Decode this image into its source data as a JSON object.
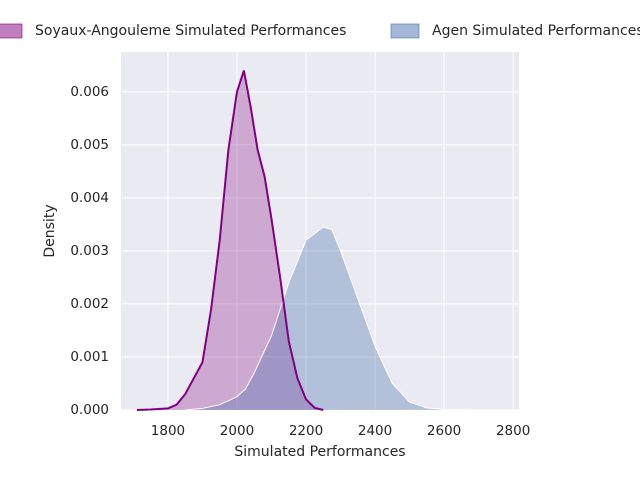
{
  "chart_data": {
    "type": "kde",
    "xlabel": "Simulated Performances",
    "ylabel": "Density",
    "xlim": [
      1664,
      2817
    ],
    "xticks": [
      1800,
      2000,
      2200,
      2400,
      2600,
      2800
    ],
    "ylim": [
      0,
      0.00675
    ],
    "yticks": [
      {
        "value": 0,
        "label": "0.000"
      },
      {
        "value": 0.001,
        "label": "0.001"
      },
      {
        "value": 0.002,
        "label": "0.002"
      },
      {
        "value": 0.003,
        "label": "0.003"
      },
      {
        "value": 0.004,
        "label": "0.004"
      },
      {
        "value": 0.005,
        "label": "0.005"
      },
      {
        "value": 0.006,
        "label": "0.006"
      }
    ],
    "grid": true,
    "legend": "top",
    "series": [
      {
        "name": "Soyaux-Angouleme Simulated Performances",
        "color": "#800080",
        "x": [
          1710,
          1750,
          1800,
          1825,
          1850,
          1875,
          1900,
          1925,
          1950,
          1975,
          2000,
          2020,
          2040,
          2060,
          2080,
          2100,
          2125,
          2150,
          2175,
          2200,
          2225,
          2250
        ],
        "values": [
          0,
          1e-05,
          3e-05,
          0.0001,
          0.0003,
          0.0006,
          0.0009,
          0.0019,
          0.0032,
          0.0049,
          0.006,
          0.0064,
          0.0057,
          0.0049,
          0.0044,
          0.0036,
          0.0025,
          0.0013,
          0.0006,
          0.0002,
          4e-05,
          0
        ]
      },
      {
        "name": "Agen Simulated Performances",
        "color": "#4c72b0",
        "x": [
          1850,
          1900,
          1950,
          2000,
          2025,
          2050,
          2100,
          2150,
          2200,
          2250,
          2275,
          2300,
          2350,
          2400,
          2450,
          2500,
          2550,
          2600,
          2700,
          2760
        ],
        "values": [
          0,
          3e-05,
          0.0001,
          0.00025,
          0.0004,
          0.0007,
          0.0014,
          0.0024,
          0.0032,
          0.00345,
          0.0034,
          0.003,
          0.0021,
          0.0012,
          0.0005,
          0.00015,
          4e-05,
          1e-05,
          0,
          0
        ]
      }
    ]
  }
}
